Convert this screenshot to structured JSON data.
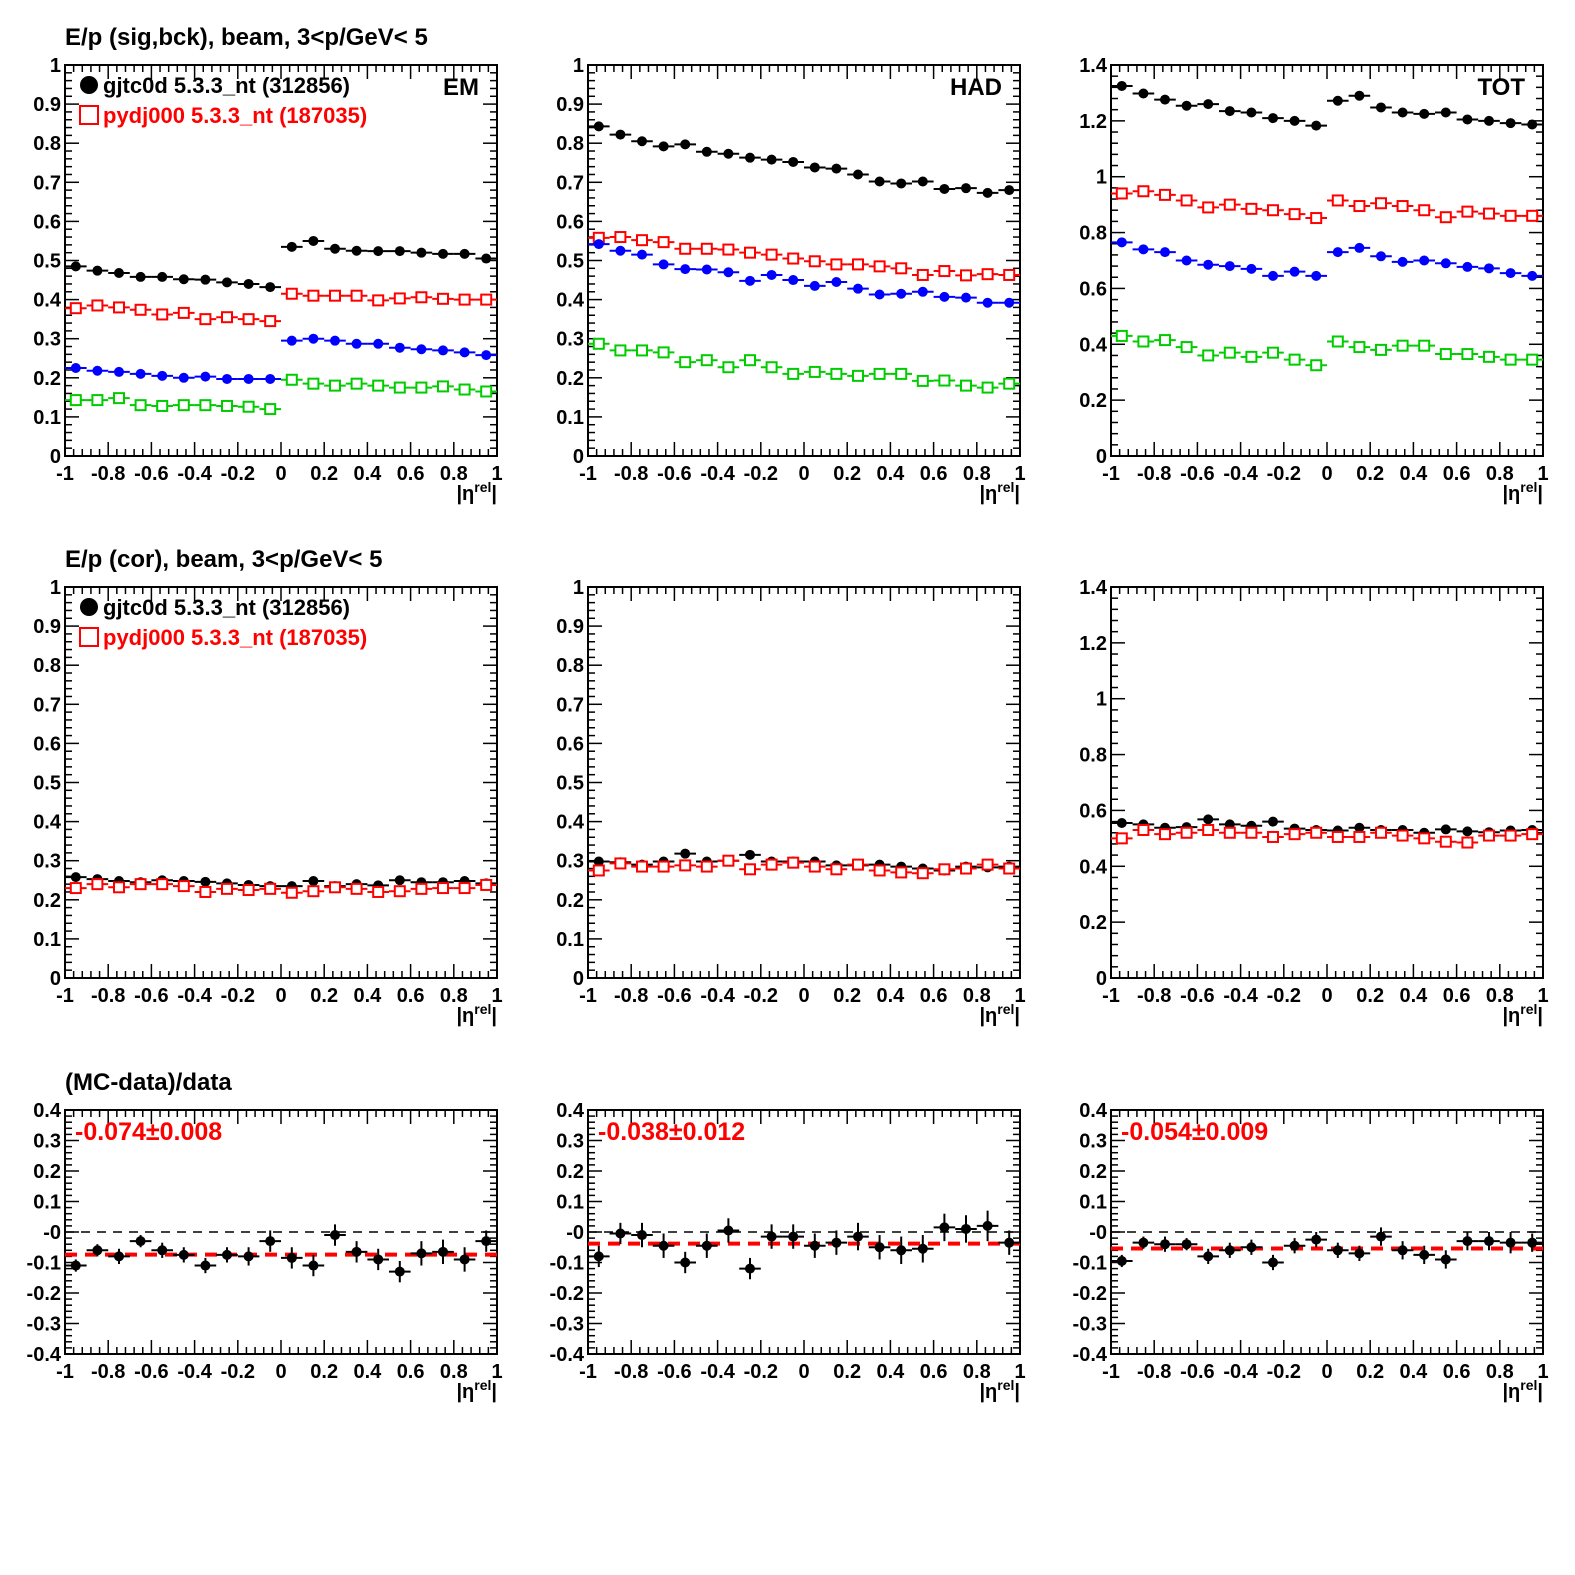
{
  "colors": {
    "data": "#000000",
    "mc": "#ff0000",
    "sig": "#0000ff",
    "bck": "#00cc00"
  },
  "row_titles": [
    "E/p (sig,bck), beam,  3<p/GeV< 5",
    "E/p (cor), beam,  3<p/GeV< 5",
    "(MC-data)/data"
  ],
  "legend": {
    "data": "gjtc0d 5.3.3_nt (312856)",
    "mc": "pydj000 5.3.3_nt (187035)"
  },
  "panel_labels": [
    "EM",
    "HAD",
    "TOT"
  ],
  "x_axis_label": {
    "base": "|η",
    "sup": "rel",
    "end": "|"
  },
  "x_tick_labels": [
    "-1",
    "-0.8",
    "-0.6",
    "-0.4",
    "-0.2",
    "0",
    "0.2",
    "0.4",
    "0.6",
    "0.8",
    "1"
  ],
  "ratio_labels": [
    "-0.074±0.008",
    "-0.038±0.012",
    "-0.054±0.009"
  ],
  "chart_data": [
    {
      "type": "scatter",
      "row": 1,
      "col": 1,
      "label": "EM",
      "xlim": [
        -1,
        1
      ],
      "ylim": [
        0,
        1
      ],
      "y_ticks": [
        "0",
        "0.1",
        "0.2",
        "0.3",
        "0.4",
        "0.5",
        "0.6",
        "0.7",
        "0.8",
        "0.9",
        "1"
      ],
      "x": [
        -0.95,
        -0.85,
        -0.75,
        -0.65,
        -0.55,
        -0.45,
        -0.35,
        -0.25,
        -0.15,
        -0.05,
        0.05,
        0.15,
        0.25,
        0.35,
        0.45,
        0.55,
        0.65,
        0.75,
        0.85,
        0.95
      ],
      "series": [
        {
          "name": "gjtc0d 5.3.3_nt (312856)",
          "color": "#000000",
          "marker": "filled",
          "values": [
            0.485,
            0.474,
            0.468,
            0.458,
            0.458,
            0.452,
            0.451,
            0.444,
            0.44,
            0.432,
            0.535,
            0.55,
            0.53,
            0.525,
            0.524,
            0.524,
            0.52,
            0.517,
            0.517,
            0.505
          ]
        },
        {
          "name": "pydj000 5.3.3_nt (187035)",
          "color": "#ff0000",
          "marker": "open",
          "values": [
            0.378,
            0.385,
            0.38,
            0.374,
            0.362,
            0.366,
            0.35,
            0.355,
            0.35,
            0.345,
            0.415,
            0.41,
            0.41,
            0.41,
            0.398,
            0.403,
            0.406,
            0.402,
            0.4,
            0.4
          ]
        },
        {
          "color": "#0000ff",
          "marker": "filled",
          "values": [
            0.225,
            0.218,
            0.215,
            0.21,
            0.205,
            0.2,
            0.203,
            0.197,
            0.197,
            0.197,
            0.295,
            0.3,
            0.295,
            0.287,
            0.287,
            0.277,
            0.273,
            0.27,
            0.265,
            0.258
          ]
        },
        {
          "color": "#00cc00",
          "marker": "open",
          "values": [
            0.143,
            0.143,
            0.148,
            0.13,
            0.128,
            0.13,
            0.13,
            0.128,
            0.126,
            0.12,
            0.195,
            0.185,
            0.18,
            0.185,
            0.18,
            0.175,
            0.175,
            0.178,
            0.17,
            0.165
          ]
        }
      ]
    },
    {
      "type": "scatter",
      "row": 1,
      "col": 2,
      "label": "HAD",
      "xlim": [
        -1,
        1
      ],
      "ylim": [
        0,
        1
      ],
      "y_ticks": [
        "0",
        "0.1",
        "0.2",
        "0.3",
        "0.4",
        "0.5",
        "0.6",
        "0.7",
        "0.8",
        "0.9",
        "1"
      ],
      "x": [
        -0.95,
        -0.85,
        -0.75,
        -0.65,
        -0.55,
        -0.45,
        -0.35,
        -0.25,
        -0.15,
        -0.05,
        0.05,
        0.15,
        0.25,
        0.35,
        0.45,
        0.55,
        0.65,
        0.75,
        0.85,
        0.95
      ],
      "series": [
        {
          "name": "gjtc0d 5.3.3_nt (312856)",
          "color": "#000000",
          "marker": "filled",
          "values": [
            0.843,
            0.822,
            0.805,
            0.792,
            0.797,
            0.778,
            0.773,
            0.763,
            0.758,
            0.752,
            0.738,
            0.735,
            0.72,
            0.702,
            0.697,
            0.702,
            0.683,
            0.685,
            0.673,
            0.68
          ]
        },
        {
          "name": "pydj000 5.3.3_nt (187035)",
          "color": "#ff0000",
          "marker": "open",
          "values": [
            0.558,
            0.56,
            0.552,
            0.547,
            0.53,
            0.53,
            0.528,
            0.52,
            0.515,
            0.505,
            0.498,
            0.49,
            0.49,
            0.485,
            0.48,
            0.463,
            0.473,
            0.462,
            0.465,
            0.463
          ]
        },
        {
          "color": "#0000ff",
          "marker": "filled",
          "values": [
            0.542,
            0.525,
            0.515,
            0.49,
            0.478,
            0.477,
            0.47,
            0.448,
            0.463,
            0.45,
            0.435,
            0.445,
            0.428,
            0.413,
            0.415,
            0.42,
            0.407,
            0.405,
            0.392,
            0.392
          ]
        },
        {
          "color": "#00cc00",
          "marker": "open",
          "values": [
            0.287,
            0.27,
            0.27,
            0.265,
            0.24,
            0.245,
            0.227,
            0.245,
            0.227,
            0.21,
            0.215,
            0.21,
            0.205,
            0.21,
            0.21,
            0.192,
            0.193,
            0.18,
            0.175,
            0.185
          ]
        }
      ]
    },
    {
      "type": "scatter",
      "row": 1,
      "col": 3,
      "label": "TOT",
      "xlim": [
        -1,
        1
      ],
      "ylim": [
        0,
        1.4
      ],
      "y_ticks": [
        "0",
        "0.2",
        "0.4",
        "0.6",
        "0.8",
        "1",
        "1.2",
        "1.4"
      ],
      "x": [
        -0.95,
        -0.85,
        -0.75,
        -0.65,
        -0.55,
        -0.45,
        -0.35,
        -0.25,
        -0.15,
        -0.05,
        0.05,
        0.15,
        0.25,
        0.35,
        0.45,
        0.55,
        0.65,
        0.75,
        0.85,
        0.95
      ],
      "series": [
        {
          "name": "gjtc0d 5.3.3_nt (312856)",
          "color": "#000000",
          "marker": "filled",
          "values": [
            1.325,
            1.298,
            1.276,
            1.254,
            1.26,
            1.235,
            1.23,
            1.21,
            1.2,
            1.183,
            1.272,
            1.29,
            1.248,
            1.23,
            1.225,
            1.23,
            1.205,
            1.2,
            1.192,
            1.187
          ]
        },
        {
          "name": "pydj000 5.3.3_nt (187035)",
          "color": "#ff0000",
          "marker": "open",
          "values": [
            0.94,
            0.948,
            0.935,
            0.915,
            0.89,
            0.9,
            0.885,
            0.88,
            0.866,
            0.852,
            0.915,
            0.895,
            0.905,
            0.895,
            0.88,
            0.855,
            0.875,
            0.868,
            0.86,
            0.86
          ]
        },
        {
          "color": "#0000ff",
          "marker": "filled",
          "values": [
            0.765,
            0.74,
            0.73,
            0.7,
            0.685,
            0.68,
            0.67,
            0.645,
            0.66,
            0.645,
            0.73,
            0.745,
            0.715,
            0.695,
            0.7,
            0.69,
            0.677,
            0.672,
            0.655,
            0.645
          ]
        },
        {
          "color": "#00cc00",
          "marker": "open",
          "values": [
            0.43,
            0.41,
            0.415,
            0.39,
            0.36,
            0.37,
            0.355,
            0.37,
            0.345,
            0.325,
            0.41,
            0.39,
            0.38,
            0.395,
            0.395,
            0.365,
            0.365,
            0.355,
            0.345,
            0.345
          ]
        }
      ]
    },
    {
      "type": "scatter",
      "row": 2,
      "col": 1,
      "xlim": [
        -1,
        1
      ],
      "ylim": [
        0,
        1
      ],
      "y_ticks": [
        "0",
        "0.1",
        "0.2",
        "0.3",
        "0.4",
        "0.5",
        "0.6",
        "0.7",
        "0.8",
        "0.9",
        "1"
      ],
      "x": [
        -0.95,
        -0.85,
        -0.75,
        -0.65,
        -0.55,
        -0.45,
        -0.35,
        -0.25,
        -0.15,
        -0.05,
        0.05,
        0.15,
        0.25,
        0.35,
        0.45,
        0.55,
        0.65,
        0.75,
        0.85,
        0.95
      ],
      "series": [
        {
          "name": "gjtc0d 5.3.3_nt (312856)",
          "color": "#000000",
          "marker": "filled",
          "values": [
            0.258,
            0.253,
            0.248,
            0.245,
            0.25,
            0.248,
            0.246,
            0.242,
            0.238,
            0.235,
            0.235,
            0.248,
            0.235,
            0.24,
            0.237,
            0.25,
            0.245,
            0.245,
            0.248,
            0.242
          ]
        },
        {
          "name": "pydj000 5.3.3_nt (187035)",
          "color": "#ff0000",
          "marker": "open",
          "values": [
            0.23,
            0.24,
            0.232,
            0.24,
            0.24,
            0.235,
            0.22,
            0.228,
            0.225,
            0.228,
            0.218,
            0.222,
            0.232,
            0.228,
            0.22,
            0.222,
            0.228,
            0.23,
            0.23,
            0.238
          ]
        }
      ]
    },
    {
      "type": "scatter",
      "row": 2,
      "col": 2,
      "xlim": [
        -1,
        1
      ],
      "ylim": [
        0,
        1
      ],
      "y_ticks": [
        "0",
        "0.1",
        "0.2",
        "0.3",
        "0.4",
        "0.5",
        "0.6",
        "0.7",
        "0.8",
        "0.9",
        "1"
      ],
      "x": [
        -0.95,
        -0.85,
        -0.75,
        -0.65,
        -0.55,
        -0.45,
        -0.35,
        -0.25,
        -0.15,
        -0.05,
        0.05,
        0.15,
        0.25,
        0.35,
        0.45,
        0.55,
        0.65,
        0.75,
        0.85,
        0.95
      ],
      "series": [
        {
          "name": "gjtc0d 5.3.3_nt (312856)",
          "color": "#000000",
          "marker": "filled",
          "values": [
            0.298,
            0.296,
            0.29,
            0.298,
            0.318,
            0.298,
            0.3,
            0.315,
            0.298,
            0.298,
            0.298,
            0.288,
            0.288,
            0.29,
            0.285,
            0.28,
            0.275,
            0.285,
            0.283,
            0.285
          ]
        },
        {
          "name": "pydj000 5.3.3_nt (187035)",
          "color": "#ff0000",
          "marker": "open",
          "values": [
            0.275,
            0.293,
            0.285,
            0.285,
            0.288,
            0.285,
            0.3,
            0.278,
            0.29,
            0.295,
            0.285,
            0.278,
            0.29,
            0.275,
            0.27,
            0.268,
            0.278,
            0.28,
            0.29,
            0.28
          ]
        }
      ]
    },
    {
      "type": "scatter",
      "row": 2,
      "col": 3,
      "xlim": [
        -1,
        1
      ],
      "ylim": [
        0,
        1.4
      ],
      "y_ticks": [
        "0",
        "0.2",
        "0.4",
        "0.6",
        "0.8",
        "1",
        "1.2",
        "1.4"
      ],
      "x": [
        -0.95,
        -0.85,
        -0.75,
        -0.65,
        -0.55,
        -0.45,
        -0.35,
        -0.25,
        -0.15,
        -0.05,
        0.05,
        0.15,
        0.25,
        0.35,
        0.45,
        0.55,
        0.65,
        0.75,
        0.85,
        0.95
      ],
      "series": [
        {
          "name": "gjtc0d 5.3.3_nt (312856)",
          "color": "#000000",
          "marker": "filled",
          "values": [
            0.555,
            0.55,
            0.538,
            0.54,
            0.568,
            0.55,
            0.545,
            0.56,
            0.535,
            0.53,
            0.528,
            0.538,
            0.53,
            0.53,
            0.52,
            0.532,
            0.525,
            0.522,
            0.528,
            0.53
          ]
        },
        {
          "name": "pydj000 5.3.3_nt (187035)",
          "color": "#ff0000",
          "marker": "open",
          "values": [
            0.5,
            0.53,
            0.515,
            0.52,
            0.53,
            0.52,
            0.52,
            0.505,
            0.515,
            0.52,
            0.505,
            0.505,
            0.52,
            0.51,
            0.5,
            0.488,
            0.485,
            0.51,
            0.51,
            0.515
          ]
        }
      ]
    },
    {
      "type": "scatter",
      "row": 3,
      "col": 1,
      "xlim": [
        -1,
        1
      ],
      "ylim": [
        -0.4,
        0.4
      ],
      "y_ticks": [
        "-0.4",
        "-0.3",
        "-0.2",
        "-0.1",
        "-0",
        "0.1",
        "0.2",
        "0.3",
        "0.4"
      ],
      "fit": -0.074,
      "annotation": "-0.074±0.008",
      "x": [
        -0.95,
        -0.85,
        -0.75,
        -0.65,
        -0.55,
        -0.45,
        -0.35,
        -0.25,
        -0.15,
        -0.05,
        0.05,
        0.15,
        0.25,
        0.35,
        0.45,
        0.55,
        0.65,
        0.75,
        0.85,
        0.95
      ],
      "values": [
        -0.11,
        -0.06,
        -0.08,
        -0.03,
        -0.06,
        -0.075,
        -0.11,
        -0.075,
        -0.08,
        -0.03,
        -0.085,
        -0.11,
        -0.01,
        -0.065,
        -0.09,
        -0.13,
        -0.07,
        -0.065,
        -0.09,
        -0.03
      ],
      "errors": [
        0.02,
        0.02,
        0.025,
        0.02,
        0.025,
        0.025,
        0.025,
        0.025,
        0.03,
        0.035,
        0.035,
        0.035,
        0.035,
        0.035,
        0.035,
        0.035,
        0.04,
        0.04,
        0.04,
        0.035
      ]
    },
    {
      "type": "scatter",
      "row": 3,
      "col": 2,
      "xlim": [
        -1,
        1
      ],
      "ylim": [
        -0.4,
        0.4
      ],
      "y_ticks": [
        "-0.4",
        "-0.3",
        "-0.2",
        "-0.1",
        "-0",
        "0.1",
        "0.2",
        "0.3",
        "0.4"
      ],
      "fit": -0.038,
      "annotation": "-0.038±0.012",
      "x": [
        -0.95,
        -0.85,
        -0.75,
        -0.65,
        -0.55,
        -0.45,
        -0.35,
        -0.25,
        -0.15,
        -0.05,
        0.05,
        0.15,
        0.25,
        0.35,
        0.45,
        0.55,
        0.65,
        0.75,
        0.85,
        0.95
      ],
      "values": [
        -0.08,
        -0.005,
        -0.01,
        -0.045,
        -0.1,
        -0.045,
        0.005,
        -0.12,
        -0.015,
        -0.015,
        -0.045,
        -0.035,
        -0.015,
        -0.05,
        -0.06,
        -0.055,
        0.015,
        0.01,
        0.02,
        -0.035
      ],
      "errors": [
        0.035,
        0.035,
        0.04,
        0.04,
        0.035,
        0.04,
        0.04,
        0.035,
        0.04,
        0.04,
        0.04,
        0.04,
        0.045,
        0.04,
        0.045,
        0.045,
        0.045,
        0.045,
        0.05,
        0.04
      ]
    },
    {
      "type": "scatter",
      "row": 3,
      "col": 3,
      "xlim": [
        -1,
        1
      ],
      "ylim": [
        -0.4,
        0.4
      ],
      "y_ticks": [
        "-0.4",
        "-0.3",
        "-0.2",
        "-0.1",
        "-0",
        "0.1",
        "0.2",
        "0.3",
        "0.4"
      ],
      "fit": -0.054,
      "annotation": "-0.054±0.009",
      "x": [
        -0.95,
        -0.85,
        -0.75,
        -0.65,
        -0.55,
        -0.45,
        -0.35,
        -0.25,
        -0.15,
        -0.05,
        0.05,
        0.15,
        0.25,
        0.35,
        0.45,
        0.55,
        0.65,
        0.75,
        0.85,
        0.95
      ],
      "values": [
        -0.095,
        -0.035,
        -0.04,
        -0.04,
        -0.08,
        -0.06,
        -0.05,
        -0.1,
        -0.045,
        -0.025,
        -0.06,
        -0.07,
        -0.015,
        -0.06,
        -0.075,
        -0.09,
        -0.03,
        -0.03,
        -0.035,
        -0.035
      ],
      "errors": [
        0.02,
        0.02,
        0.025,
        0.02,
        0.025,
        0.025,
        0.025,
        0.025,
        0.025,
        0.025,
        0.025,
        0.025,
        0.03,
        0.03,
        0.03,
        0.03,
        0.03,
        0.03,
        0.035,
        0.03
      ]
    }
  ]
}
